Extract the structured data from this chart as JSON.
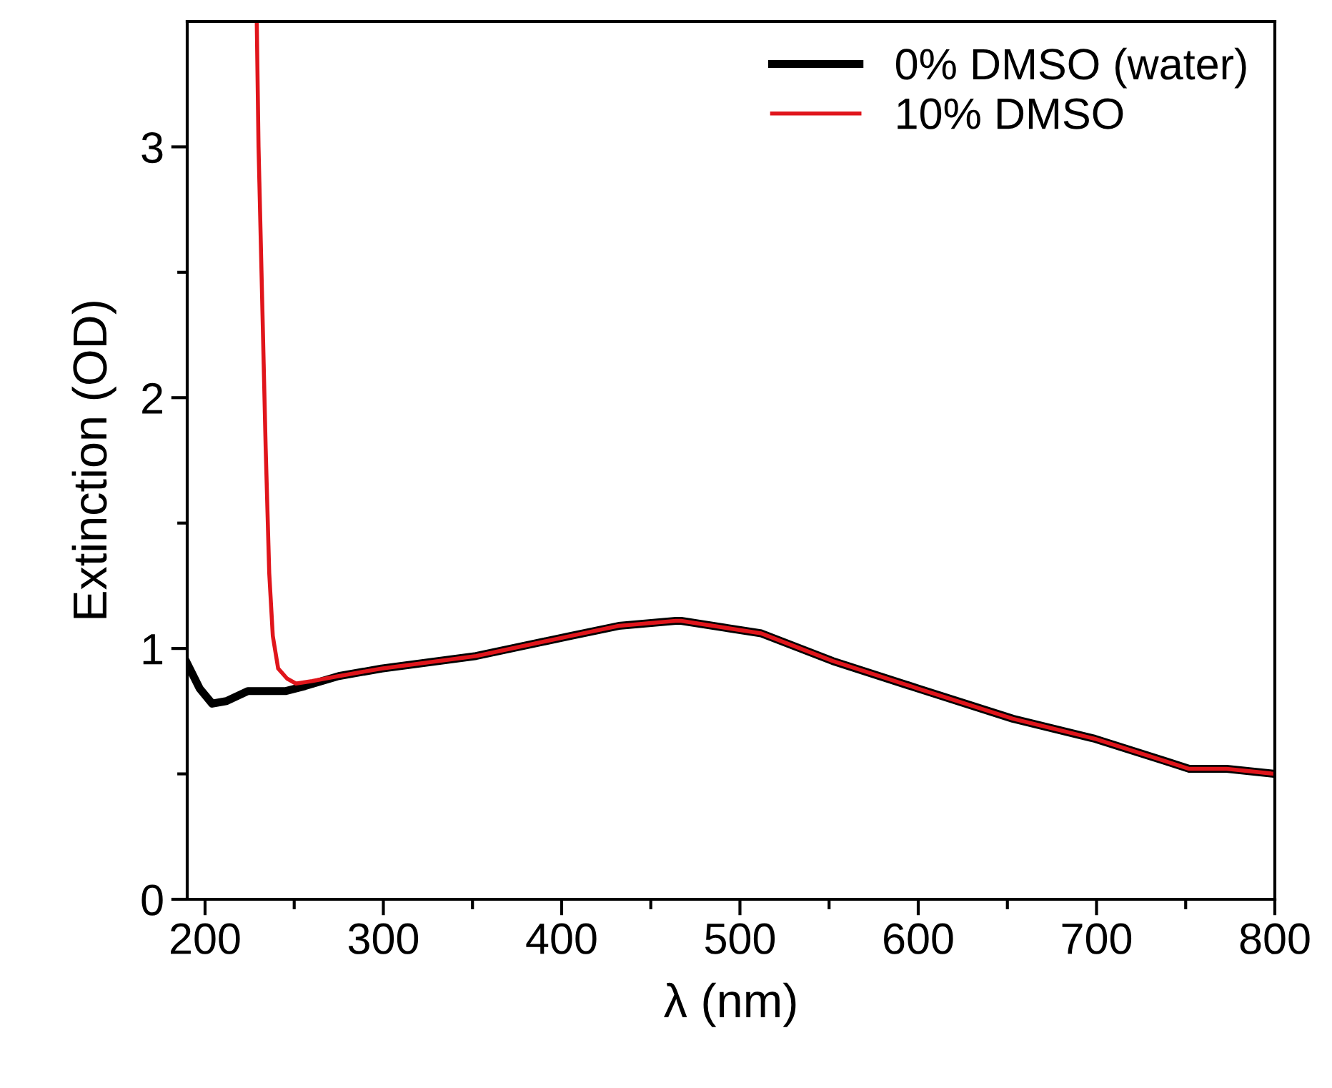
{
  "chart_data": {
    "type": "line",
    "xlabel": "λ (nm)",
    "ylabel": "Extinction (OD)",
    "xlim": [
      190,
      800
    ],
    "ylim": [
      0,
      3.5
    ],
    "xticks": [
      200,
      {
        "value": 250,
        "label": null
      },
      300,
      {
        "value": 350,
        "label": null
      },
      400,
      {
        "value": 450,
        "label": null
      },
      500,
      {
        "value": 550,
        "label": null
      },
      600,
      {
        "value": 650,
        "label": null
      },
      700,
      {
        "value": 750,
        "label": null
      },
      800
    ],
    "yticks": [
      0,
      {
        "value": 0.5,
        "label": null
      },
      1,
      {
        "value": 1.5,
        "label": null
      },
      2,
      {
        "value": 2.5,
        "label": null
      },
      3
    ],
    "grid": false,
    "legend": "top right",
    "marker": "none",
    "line_style": "solid",
    "series": [
      {
        "name": "0% DMSO (water)",
        "color": "#000000",
        "x": [
          190,
          197,
          204,
          212,
          224,
          245,
          256,
          275,
          299,
          352,
          405,
          432,
          464,
          467,
          512,
          552,
          600,
          653,
          699,
          739,
          752,
          773,
          800
        ],
        "values": [
          0.94,
          0.84,
          0.78,
          0.79,
          0.83,
          0.83,
          0.85,
          0.89,
          0.92,
          0.97,
          1.05,
          1.09,
          1.11,
          1.11,
          1.06,
          0.95,
          0.84,
          0.72,
          0.64,
          0.55,
          0.52,
          0.52,
          0.5
        ]
      },
      {
        "name": "10% DMSO",
        "color": "#e0151b",
        "x": [
          229,
          230,
          232,
          234,
          236,
          238,
          241,
          246,
          251,
          260,
          275,
          299,
          352,
          405,
          432,
          464,
          467,
          512,
          552,
          600,
          653,
          699,
          739,
          752,
          773,
          800
        ],
        "values": [
          3.5,
          3.0,
          2.4,
          1.8,
          1.3,
          1.05,
          0.92,
          0.88,
          0.86,
          0.87,
          0.89,
          0.92,
          0.97,
          1.05,
          1.09,
          1.11,
          1.11,
          1.06,
          0.95,
          0.84,
          0.72,
          0.64,
          0.55,
          0.52,
          0.52,
          0.5
        ]
      }
    ]
  }
}
